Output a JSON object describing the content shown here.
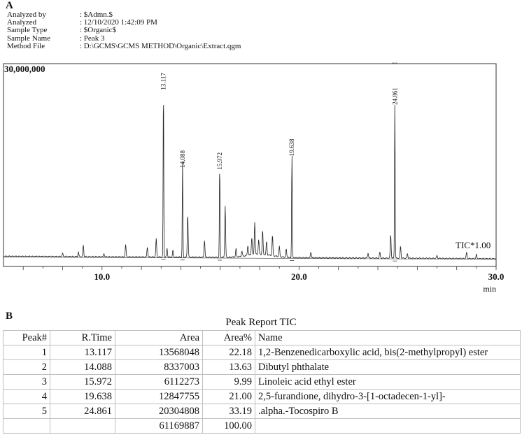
{
  "panel_a_label": "A",
  "panel_b_label": "B",
  "header": {
    "rows": [
      {
        "key": "Analyzed by",
        "value": ": $Admn.$"
      },
      {
        "key": "Analyzed",
        "value": ": 12/10/2020 1:42:09 PM"
      },
      {
        "key": "Sample Type",
        "value": ": $Organic$"
      },
      {
        "key": "Sample Name",
        "value": ": Peak 3"
      },
      {
        "key": "Method File",
        "value": ": D:\\GCMS\\GCMS METHOD\\Organic\\Extract.qgm"
      }
    ]
  },
  "chart_data": {
    "type": "line",
    "ymax_label": "30,000,000",
    "trace_label": "TIC*1.00",
    "xlabel": "min",
    "xlim": [
      5.0,
      30.0
    ],
    "ylim": [
      0,
      30000000
    ],
    "x_ticks": [
      10.0,
      20.0,
      30.0
    ],
    "x_tick_labels": [
      "10.0",
      "20.0",
      "30.0"
    ],
    "peak_labels": [
      {
        "rt": 13.117,
        "label": "13.117",
        "height": 25700000
      },
      {
        "rt": 14.088,
        "label": "14.088",
        "height": 14200000
      },
      {
        "rt": 15.972,
        "label": "15.972",
        "height": 13900000
      },
      {
        "rt": 19.638,
        "label": "19.638",
        "height": 15900000
      },
      {
        "rt": 24.861,
        "label": "24.861",
        "height": 23500000
      }
    ],
    "minor_peaks": [
      [
        8.0,
        500000
      ],
      [
        8.8,
        700000
      ],
      [
        9.05,
        1700000
      ],
      [
        10.1,
        500000
      ],
      [
        11.2,
        1800000
      ],
      [
        12.3,
        1500000
      ],
      [
        12.75,
        2700000
      ],
      [
        13.3,
        1300000
      ],
      [
        13.6,
        1000000
      ],
      [
        14.35,
        6400000
      ],
      [
        15.2,
        2600000
      ],
      [
        16.25,
        7600000
      ],
      [
        16.8,
        1200000
      ],
      [
        17.1,
        800000
      ],
      [
        17.4,
        1500000
      ],
      [
        17.6,
        2600000
      ],
      [
        17.75,
        4800000
      ],
      [
        17.95,
        2200000
      ],
      [
        18.15,
        3600000
      ],
      [
        18.35,
        2000000
      ],
      [
        18.65,
        3000000
      ],
      [
        19.0,
        1500000
      ],
      [
        19.35,
        1200000
      ],
      [
        20.6,
        900000
      ],
      [
        23.5,
        800000
      ],
      [
        24.1,
        900000
      ],
      [
        24.65,
        3600000
      ],
      [
        25.15,
        1800000
      ],
      [
        25.5,
        700000
      ],
      [
        27.0,
        400000
      ],
      [
        28.5,
        900000
      ],
      [
        29.0,
        600000
      ]
    ]
  },
  "report": {
    "title": "Peak Report TIC",
    "columns": [
      "Peak#",
      "R.Time",
      "Area",
      "Area%",
      "Name"
    ],
    "rows": [
      [
        "1",
        "13.117",
        "13568048",
        "22.18",
        "1,2-Benzenedicarboxylic acid, bis(2-methylpropyl) ester"
      ],
      [
        "2",
        "14.088",
        "8337003",
        "13.63",
        "Dibutyl phthalate"
      ],
      [
        "3",
        "15.972",
        "6112273",
        "9.99",
        "Linoleic acid ethyl ester"
      ],
      [
        "4",
        "19.638",
        "12847755",
        "21.00",
        "2,5-furandione, dihydro-3-[1-octadecen-1-yl]-"
      ],
      [
        "5",
        "24.861",
        "20304808",
        "33.19",
        ".alpha.-Tocospiro B"
      ]
    ],
    "total": [
      "",
      "",
      "61169887",
      "100.00",
      ""
    ]
  }
}
